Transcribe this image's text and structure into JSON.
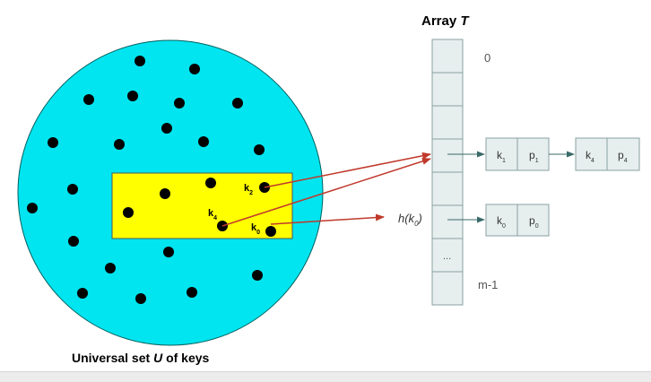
{
  "title": {
    "prefix": "Array ",
    "var": "T"
  },
  "caption": {
    "pre": "Universal set ",
    "var": "U",
    "post": " of keys"
  },
  "array": {
    "first_index": "0",
    "last_index": "m-1",
    "ellipsis": "..."
  },
  "hash_label": {
    "fn": "h(k",
    "sub": "0",
    "close": ")"
  },
  "keys_in_subset": [
    {
      "base": "k",
      "sub": "2"
    },
    {
      "base": "k",
      "sub": "4"
    },
    {
      "base": "k",
      "sub": "0"
    }
  ],
  "chains": {
    "row3": [
      {
        "key": "k",
        "key_sub": "1",
        "val": "p",
        "val_sub": "1"
      },
      {
        "key": "k",
        "key_sub": "4",
        "val": "p",
        "val_sub": "4"
      }
    ],
    "row5": [
      {
        "key": "k",
        "key_sub": "0",
        "val": "p",
        "val_sub": "0"
      }
    ]
  },
  "colors": {
    "universe": "#00e5ef",
    "subset": "#ffff00",
    "cell": "#e6eeee",
    "cell_border": "#8aa0a0",
    "hash_arrow": "#c0392b",
    "chain_arrow": "#3a6a6a",
    "text": "#333333"
  }
}
